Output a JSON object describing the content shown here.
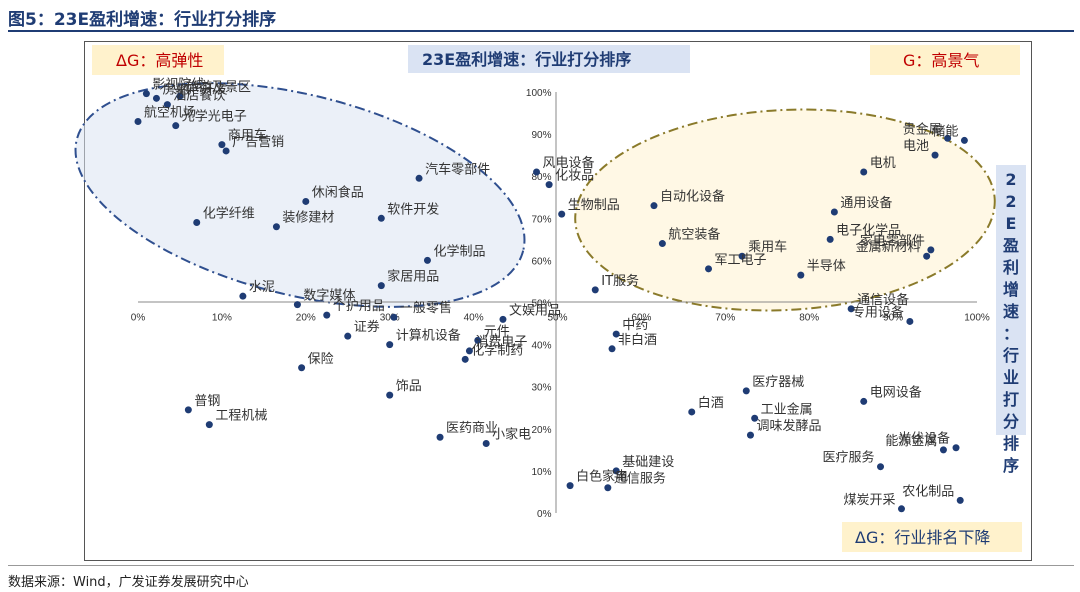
{
  "figure_title": "图5：23E盈利增速：行业打分排序",
  "source": "数据来源：Wind，广发证券发展研究中心",
  "chart_data": {
    "type": "scatter",
    "title": "23E盈利增速：行业打分排序",
    "xlabel": "",
    "ylabel": "22E盈利增速：行业打分排序",
    "xlim": [
      0,
      100
    ],
    "ylim": [
      0,
      100
    ],
    "x_ticks": [
      "0%",
      "10%",
      "20%",
      "30%",
      "40%",
      "50%",
      "60%",
      "70%",
      "80%",
      "90%",
      "100%"
    ],
    "y_ticks": [
      "0%",
      "10%",
      "20%",
      "30%",
      "40%",
      "50%",
      "60%",
      "70%",
      "80%",
      "90%",
      "100%"
    ],
    "grid": false,
    "quadrant_labels": {
      "top_left": "ΔG：高弹性",
      "top_right": "G：高景气",
      "bottom_right": "ΔG：行业排名下降"
    },
    "colors": {
      "point": "#1f3c74",
      "title_blue": "#1f3c74",
      "red_text": "#c00000",
      "yellow_box": "#fff2cc",
      "blue_box": "#dae3f3",
      "ellipse_left_fill": "#dae3f3",
      "ellipse_left_stroke": "#2f4f8f",
      "ellipse_right_fill": "#fff2cc",
      "ellipse_right_stroke": "#8a7a2a"
    },
    "points": [
      {
        "name": "影视院线",
        "x": 1.0,
        "y": 99.6
      },
      {
        "name": "房地产开发",
        "x": 2.2,
        "y": 98.5
      },
      {
        "name": "旅游及景区",
        "x": 5.0,
        "y": 99.0
      },
      {
        "name": "酒店餐饮",
        "x": 3.5,
        "y": 97.0
      },
      {
        "name": "光学光电子",
        "x": 4.5,
        "y": 92.0
      },
      {
        "name": "航空机场",
        "x": 0.0,
        "y": 93.0
      },
      {
        "name": "商用车",
        "x": 10.0,
        "y": 87.5
      },
      {
        "name": "广告营销",
        "x": 10.5,
        "y": 86.0
      },
      {
        "name": "汽车零部件",
        "x": 33.5,
        "y": 79.5
      },
      {
        "name": "风电设备",
        "x": 47.5,
        "y": 81.0
      },
      {
        "name": "化妆品",
        "x": 49.0,
        "y": 78.0
      },
      {
        "name": "休闲食品",
        "x": 20.0,
        "y": 74.0
      },
      {
        "name": "化学纤维",
        "x": 7.0,
        "y": 69.0
      },
      {
        "name": "软件开发",
        "x": 29.0,
        "y": 70.0
      },
      {
        "name": "装修建材",
        "x": 16.5,
        "y": 68.0
      },
      {
        "name": "生物制品",
        "x": 50.5,
        "y": 71.0
      },
      {
        "name": "化学制品",
        "x": 34.5,
        "y": 60.0
      },
      {
        "name": "家居用品",
        "x": 29.0,
        "y": 54.0
      },
      {
        "name": "水泥",
        "x": 12.5,
        "y": 51.5
      },
      {
        "name": "数字媒体",
        "x": 19.0,
        "y": 49.5
      },
      {
        "name": "IT服务",
        "x": 54.5,
        "y": 53.0
      },
      {
        "name": "自动化设备",
        "x": 61.5,
        "y": 73.0
      },
      {
        "name": "航空装备",
        "x": 62.5,
        "y": 64.0
      },
      {
        "name": "乘用车",
        "x": 72.0,
        "y": 61.0
      },
      {
        "name": "军工电子",
        "x": 68.0,
        "y": 58.0
      },
      {
        "name": "半导体",
        "x": 79.0,
        "y": 56.5
      },
      {
        "name": "通用设备",
        "x": 83.0,
        "y": 71.5
      },
      {
        "name": "电子化学品",
        "x": 82.5,
        "y": 65.0
      },
      {
        "name": "电机",
        "x": 86.5,
        "y": 81.0
      },
      {
        "name": "贵金属",
        "x": 96.5,
        "y": 89.0
      },
      {
        "name": "电池",
        "x": 95.0,
        "y": 85.0
      },
      {
        "name": "储能",
        "x": 98.5,
        "y": 88.5
      },
      {
        "name": "家电零部件",
        "x": 94.5,
        "y": 62.5
      },
      {
        "name": "金属新材料",
        "x": 94.0,
        "y": 61.0
      },
      {
        "name": "个护用品",
        "x": 22.5,
        "y": 47.0
      },
      {
        "name": "证券",
        "x": 25.0,
        "y": 42.0
      },
      {
        "name": "一般零售",
        "x": 30.5,
        "y": 46.5
      },
      {
        "name": "文娱用品",
        "x": 43.5,
        "y": 46.0
      },
      {
        "name": "元件",
        "x": 40.5,
        "y": 41.0
      },
      {
        "name": "计算机设备",
        "x": 30.0,
        "y": 40.0
      },
      {
        "name": "消费电子",
        "x": 39.5,
        "y": 38.5
      },
      {
        "name": "化学制药",
        "x": 39.0,
        "y": 36.5
      },
      {
        "name": "中药",
        "x": 57.0,
        "y": 42.5
      },
      {
        "name": "非白酒",
        "x": 56.5,
        "y": 39.0
      },
      {
        "name": "通信设备",
        "x": 85.0,
        "y": 48.5
      },
      {
        "name": "专用设备",
        "x": 92.0,
        "y": 45.5
      },
      {
        "name": "保险",
        "x": 19.5,
        "y": 34.5
      },
      {
        "name": "饰品",
        "x": 30.0,
        "y": 28.0
      },
      {
        "name": "普钢",
        "x": 6.0,
        "y": 24.5
      },
      {
        "name": "工程机械",
        "x": 8.5,
        "y": 21.0
      },
      {
        "name": "医药商业",
        "x": 36.0,
        "y": 18.0
      },
      {
        "name": "小家电",
        "x": 41.5,
        "y": 16.5
      },
      {
        "name": "白酒",
        "x": 66.0,
        "y": 24.0
      },
      {
        "name": "医疗器械",
        "x": 72.5,
        "y": 29.0
      },
      {
        "name": "工业金属",
        "x": 73.5,
        "y": 22.5
      },
      {
        "name": "调味发酵品",
        "x": 73.0,
        "y": 18.5
      },
      {
        "name": "电网设备",
        "x": 86.5,
        "y": 26.5
      },
      {
        "name": "光伏设备",
        "x": 97.5,
        "y": 15.5
      },
      {
        "name": "能源金属",
        "x": 96.0,
        "y": 15.0
      },
      {
        "name": "医疗服务",
        "x": 88.5,
        "y": 11.0
      },
      {
        "name": "基础建设",
        "x": 57.0,
        "y": 10.0
      },
      {
        "name": "白色家电",
        "x": 51.5,
        "y": 6.5
      },
      {
        "name": "通信服务",
        "x": 56.0,
        "y": 6.0
      },
      {
        "name": "煤炭开采",
        "x": 91.0,
        "y": 1.0
      },
      {
        "name": "农化制品",
        "x": 98.0,
        "y": 3.0
      }
    ]
  }
}
